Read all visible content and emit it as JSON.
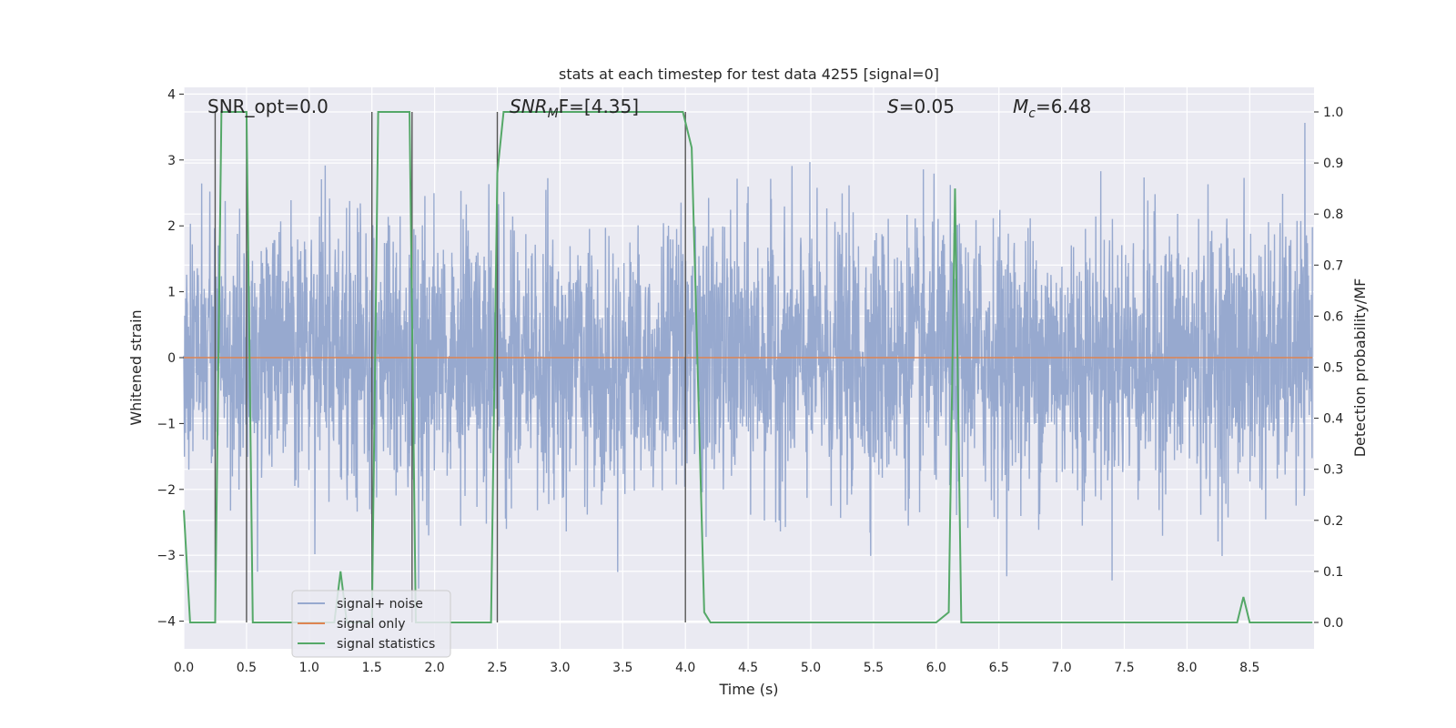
{
  "chart_data": {
    "type": "line",
    "title": "stats at each timestep for test data 4255 [signal=0]",
    "xlabel": "Time (s)",
    "ylabel_left": "Whitened strain",
    "ylabel_right": "Detection probability/MF",
    "xlim": [
      0,
      9.0
    ],
    "ylim_left": [
      -4.35,
      4.1
    ],
    "ylim_right": [
      -0.045,
      1.04
    ],
    "x_ticks": [
      "0.0",
      "0.5",
      "1.0",
      "1.5",
      "2.0",
      "2.5",
      "3.0",
      "3.5",
      "4.0",
      "4.5",
      "5.0",
      "5.5",
      "6.0",
      "6.5",
      "7.0",
      "7.5",
      "8.0",
      "8.5"
    ],
    "y_ticks_left": [
      "−4",
      "−3",
      "−2",
      "−1",
      "0",
      "1",
      "2",
      "3",
      "4"
    ],
    "y_ticks_right": [
      "0.0",
      "0.1",
      "0.2",
      "0.3",
      "0.4",
      "0.5",
      "0.6",
      "0.7",
      "0.8",
      "0.9",
      "1.0"
    ],
    "grid": true,
    "legend_position": "lower-left",
    "annotations": {
      "snr_opt": "SNR_opt=0.0",
      "snr_mf_main": "SNR",
      "snr_mf_sub": "M",
      "snr_mf_rest": "F=[4.35]",
      "s_main": "S",
      "s_rest": "=0.05",
      "mc_main": "M",
      "mc_sub": "c",
      "mc_rest": "=6.48"
    },
    "vertical_markers": [
      0.25,
      0.5,
      1.5,
      1.82,
      2.5,
      4.0
    ],
    "series": [
      {
        "name": "signal+ noise",
        "axis": "left",
        "color": "#97a9cf",
        "style": "noise",
        "typical_std": 1.0,
        "peak_range": [
          -3.95,
          3.85
        ]
      },
      {
        "name": "signal only",
        "axis": "left",
        "color": "#dd8452",
        "x": [
          0,
          9.0
        ],
        "y": [
          0,
          0
        ]
      },
      {
        "name": "signal statistics",
        "axis": "right",
        "color": "#55a868",
        "x": [
          0,
          0.05,
          0.25,
          0.3,
          0.5,
          0.55,
          0.75,
          1.0,
          1.2,
          1.25,
          1.3,
          1.45,
          1.5,
          1.55,
          1.75,
          1.8,
          1.85,
          2.0,
          2.25,
          2.45,
          2.5,
          2.55,
          2.75,
          3.0,
          3.5,
          3.75,
          3.98,
          4.05,
          4.15,
          4.2,
          4.25,
          4.5,
          5.0,
          5.5,
          6.0,
          6.1,
          6.15,
          6.2,
          6.25,
          6.5,
          7.0,
          7.5,
          8.0,
          8.4,
          8.45,
          8.5,
          8.75,
          9.0
        ],
        "y": [
          0.22,
          0.0,
          0.0,
          1.0,
          1.0,
          0.0,
          0.0,
          0.0,
          0.0,
          0.1,
          0.0,
          0.0,
          0.0,
          1.0,
          1.0,
          1.0,
          0.0,
          0.0,
          0.0,
          0.0,
          0.88,
          1.0,
          1.0,
          1.0,
          1.0,
          1.0,
          1.0,
          0.93,
          0.02,
          0.0,
          0.0,
          0.0,
          0.0,
          0.0,
          0.0,
          0.02,
          0.85,
          0.0,
          0.0,
          0.0,
          0.0,
          0.0,
          0.0,
          0.0,
          0.05,
          0.0,
          0.0,
          0.0
        ]
      }
    ]
  }
}
